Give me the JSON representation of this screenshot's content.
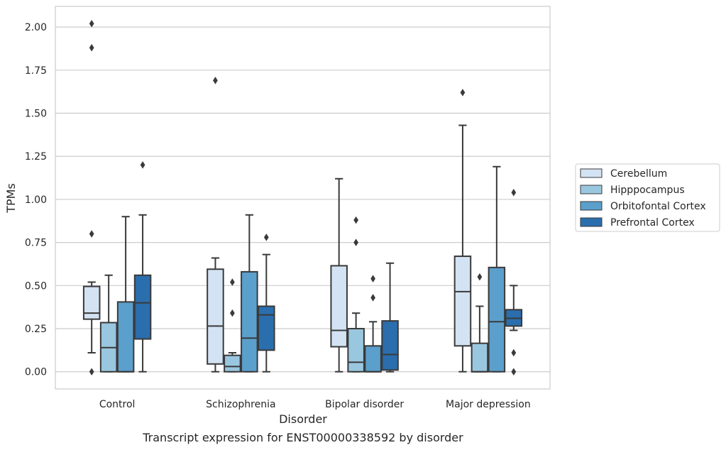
{
  "chart_data": {
    "type": "box",
    "title": "",
    "caption": "Transcript expression for ENST00000338592 by disorder",
    "xlabel": "Disorder",
    "ylabel": "TPMs",
    "ylim": [
      -0.1,
      2.12
    ],
    "yticks": [
      "0.00",
      "0.25",
      "0.50",
      "0.75",
      "1.00",
      "1.25",
      "1.50",
      "1.75",
      "2.00"
    ],
    "grid": true,
    "legend_position": "right",
    "categories": [
      "Control",
      "Schizophrenia",
      "Bipolar disorder",
      "Major depression"
    ],
    "series": [
      {
        "name": "Cerebellum",
        "color": "#d3e3f3",
        "boxes": [
          {
            "q1": 0.305,
            "median": 0.34,
            "q3": 0.495,
            "whisker_low": 0.11,
            "whisker_high": 0.52,
            "outliers": [
              0.0,
              0.8,
              1.88,
              2.02
            ]
          },
          {
            "q1": 0.045,
            "median": 0.265,
            "q3": 0.595,
            "whisker_low": 0.0,
            "whisker_high": 0.66,
            "outliers": [
              1.69
            ]
          },
          {
            "q1": 0.145,
            "median": 0.24,
            "q3": 0.615,
            "whisker_low": 0.0,
            "whisker_high": 1.12,
            "outliers": []
          },
          {
            "q1": 0.15,
            "median": 0.465,
            "q3": 0.67,
            "whisker_low": 0.0,
            "whisker_high": 1.43,
            "outliers": [
              1.62
            ]
          }
        ]
      },
      {
        "name": "Hipppocampus",
        "color": "#9ac7e0",
        "boxes": [
          {
            "q1": 0.0,
            "median": 0.14,
            "q3": 0.285,
            "whisker_low": 0.0,
            "whisker_high": 0.56,
            "outliers": []
          },
          {
            "q1": 0.0,
            "median": 0.03,
            "q3": 0.095,
            "whisker_low": 0.0,
            "whisker_high": 0.11,
            "outliers": [
              0.34,
              0.52
            ]
          },
          {
            "q1": 0.0,
            "median": 0.055,
            "q3": 0.25,
            "whisker_low": 0.0,
            "whisker_high": 0.34,
            "outliers": [
              0.75,
              0.88
            ]
          },
          {
            "q1": 0.0,
            "median": 0.0,
            "q3": 0.165,
            "whisker_low": 0.0,
            "whisker_high": 0.38,
            "outliers": [
              0.55
            ]
          }
        ]
      },
      {
        "name": "Orbitofontal Cortex",
        "color": "#5b9fcc",
        "boxes": [
          {
            "q1": 0.0,
            "median": 0.0,
            "q3": 0.405,
            "whisker_low": 0.0,
            "whisker_high": 0.9,
            "outliers": []
          },
          {
            "q1": 0.0,
            "median": 0.195,
            "q3": 0.58,
            "whisker_low": 0.0,
            "whisker_high": 0.91,
            "outliers": []
          },
          {
            "q1": 0.0,
            "median": 0.0,
            "q3": 0.15,
            "whisker_low": 0.0,
            "whisker_high": 0.29,
            "outliers": [
              0.43,
              0.54
            ]
          },
          {
            "q1": 0.0,
            "median": 0.29,
            "q3": 0.605,
            "whisker_low": 0.0,
            "whisker_high": 1.19,
            "outliers": []
          }
        ]
      },
      {
        "name": "Prefrontal Cortex",
        "color": "#2a6ead",
        "boxes": [
          {
            "q1": 0.19,
            "median": 0.4,
            "q3": 0.56,
            "whisker_low": 0.0,
            "whisker_high": 0.91,
            "outliers": [
              1.2
            ]
          },
          {
            "q1": 0.125,
            "median": 0.33,
            "q3": 0.38,
            "whisker_low": 0.0,
            "whisker_high": 0.68,
            "outliers": [
              0.78
            ]
          },
          {
            "q1": 0.01,
            "median": 0.1,
            "q3": 0.295,
            "whisker_low": 0.0,
            "whisker_high": 0.63,
            "outliers": []
          },
          {
            "q1": 0.265,
            "median": 0.31,
            "q3": 0.36,
            "whisker_low": 0.24,
            "whisker_high": 0.5,
            "outliers": [
              0.0,
              0.11,
              1.04
            ]
          }
        ]
      }
    ]
  }
}
